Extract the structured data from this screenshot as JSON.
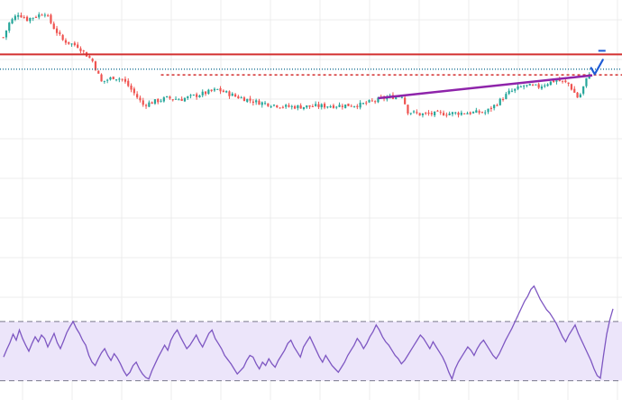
{
  "chart_data": [
    {
      "type": "candlestick",
      "title": "",
      "xlabel": "",
      "ylabel": "",
      "grid": true,
      "ylim": [
        0,
        220
      ],
      "colors": {
        "up": "#26a69a",
        "down": "#ef5350",
        "grid": "#ececec",
        "background": "#ffffff"
      },
      "close_trace": [
        [
          0,
          175
        ],
        [
          2,
          190
        ],
        [
          5,
          200
        ],
        [
          8,
          194
        ],
        [
          14,
          201
        ],
        [
          17,
          185
        ],
        [
          20,
          172
        ],
        [
          23,
          168
        ],
        [
          25,
          166
        ],
        [
          30,
          150
        ],
        [
          33,
          128
        ],
        [
          37,
          133
        ],
        [
          40,
          131
        ],
        [
          42,
          124
        ],
        [
          47,
          104
        ],
        [
          55,
          111
        ],
        [
          60,
          110
        ],
        [
          65,
          114
        ],
        [
          72,
          120
        ],
        [
          78,
          113
        ],
        [
          85,
          107
        ],
        [
          95,
          102
        ],
        [
          100,
          102
        ],
        [
          110,
          103
        ],
        [
          120,
          104
        ],
        [
          128,
          111
        ],
        [
          134,
          114
        ],
        [
          136,
          97
        ],
        [
          140,
          94
        ],
        [
          150,
          95
        ],
        [
          160,
          96
        ],
        [
          162,
          96
        ],
        [
          165,
          103
        ],
        [
          170,
          117
        ],
        [
          175,
          124
        ],
        [
          180,
          123
        ],
        [
          183,
          127
        ],
        [
          186,
          130
        ],
        [
          190,
          126
        ],
        [
          193,
          112
        ],
        [
          194,
          115
        ],
        [
          197,
          138
        ]
      ],
      "horizontal_lines": [
        {
          "name": "resistance",
          "price": 157,
          "style": "solid",
          "color": "#d32f2f"
        },
        {
          "name": "last-price",
          "price": 141.5,
          "style": "dotted",
          "color": "#2e7d9c"
        },
        {
          "name": "level",
          "price": 135.5,
          "style": "dotted",
          "color": "#d32f2f"
        }
      ],
      "trendline": {
        "from": [
          126,
          111
        ],
        "to": [
          198,
          135
        ],
        "color": "#8e24aa"
      },
      "annotation": {
        "symbol": "check",
        "at": [
          197,
          140
        ],
        "color": "#1e5bd6"
      }
    },
    {
      "type": "line",
      "series": [
        {
          "values": [
            28,
            37,
            45,
            55,
            48,
            60,
            50,
            42,
            35,
            44,
            52,
            46,
            54,
            50,
            40,
            48,
            56,
            45,
            38,
            47,
            57,
            64,
            70,
            62,
            56,
            48,
            42,
            30,
            22,
            18,
            26,
            33,
            38,
            30,
            24,
            32,
            27,
            20,
            12,
            6,
            10,
            18,
            22,
            14,
            8,
            4,
            2,
            12,
            20,
            28,
            35,
            42,
            36,
            48,
            55,
            60,
            52,
            45,
            38,
            42,
            48,
            54,
            46,
            40,
            48,
            56,
            60,
            50,
            44,
            38,
            30,
            25,
            20,
            14,
            8,
            12,
            16,
            24,
            30,
            28,
            20,
            14,
            22,
            18,
            26,
            20,
            16,
            24,
            30,
            36,
            44,
            48,
            40,
            34,
            28,
            40,
            46,
            52,
            44,
            36,
            28,
            22,
            30,
            24,
            18,
            14,
            10,
            16,
            22,
            30,
            36,
            42,
            50,
            45,
            38,
            44,
            52,
            58,
            66,
            60,
            52,
            46,
            42,
            36,
            30,
            26,
            20,
            24,
            30,
            36,
            42,
            48,
            54,
            50,
            44,
            38,
            46,
            40,
            34,
            28,
            20,
            10,
            2,
            14,
            22,
            28,
            34,
            40,
            36,
            30,
            38,
            44,
            48,
            42,
            36,
            30,
            26,
            32,
            40,
            48,
            55,
            62,
            70,
            78,
            86,
            94,
            100,
            108,
            112,
            104,
            96,
            90,
            84,
            80,
            74,
            68,
            60,
            52,
            46,
            54,
            60,
            66,
            56,
            48,
            40,
            32,
            24,
            14,
            6,
            3,
            30,
            55,
            72,
            85
          ]
        }
      ],
      "ylim": [
        -10,
        120
      ],
      "bands": {
        "upper": 70,
        "lower": 0
      },
      "colors": {
        "line": "#7e57c2",
        "band": "#ece5fa"
      }
    }
  ]
}
